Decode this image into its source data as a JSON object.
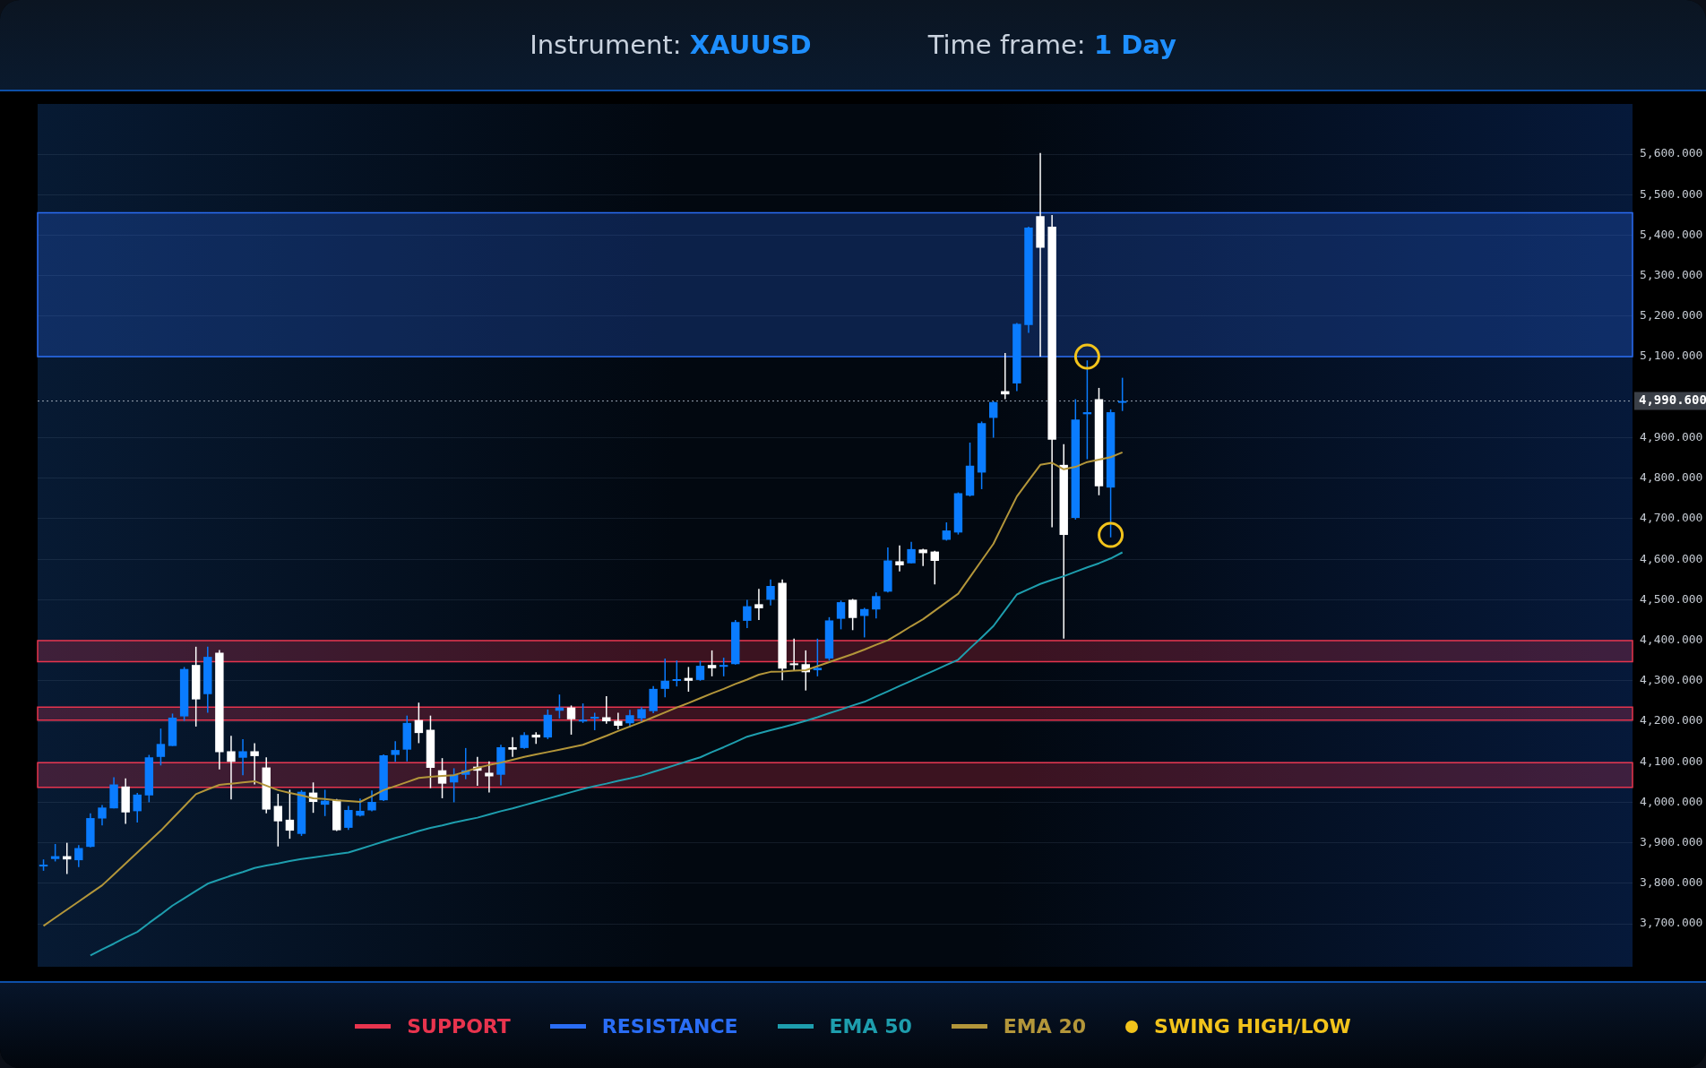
{
  "chart_data": {
    "type": "candlestick",
    "title": "Instrument: XAUUSD",
    "subtitle": "Time frame: 1 Day",
    "categories": [
      null,
      null,
      null,
      null,
      null,
      null,
      null,
      null,
      null,
      null,
      null,
      null,
      null,
      null,
      null,
      null,
      null,
      null,
      null,
      null,
      null,
      null,
      null,
      null,
      null,
      null,
      null,
      null,
      null,
      null,
      null,
      null,
      null,
      null,
      null,
      null,
      null,
      null,
      null,
      null,
      null,
      null,
      null,
      null,
      null,
      null,
      null,
      null,
      null,
      null,
      null,
      null,
      null,
      null,
      null,
      null,
      null,
      null,
      null,
      null,
      null,
      null,
      null,
      null,
      null,
      null,
      null,
      null,
      null,
      null,
      null,
      null,
      null,
      null,
      null,
      null,
      null,
      null,
      null,
      null,
      null,
      null,
      null,
      null,
      null,
      null,
      null,
      null,
      null,
      null,
      null,
      null,
      null,
      null,
      null,
      null,
      null,
      null,
      null,
      null,
      null,
      null,
      null,
      null,
      null,
      null,
      null,
      null,
      null,
      null,
      null,
      null,
      null,
      null,
      null,
      null,
      null,
      null,
      null,
      null,
      null,
      null,
      null,
      null,
      null,
      null,
      null,
      null,
      null,
      null,
      null,
      null,
      null,
      null,
      null,
      null
    ],
    "ohlc": [
      [
        3842,
        3859,
        3831,
        3846
      ],
      [
        3860,
        3897,
        3854,
        3867
      ],
      [
        3867,
        3900,
        3823,
        3859
      ],
      [
        3857,
        3894,
        3840,
        3887
      ],
      [
        3890,
        3973,
        3889,
        3961
      ],
      [
        3960,
        3993,
        3943,
        3987
      ],
      [
        3985,
        4062,
        3985,
        4044
      ],
      [
        4039,
        4059,
        3947,
        3975
      ],
      [
        3978,
        4023,
        3950,
        4019
      ],
      [
        4017,
        4117,
        4000,
        4111
      ],
      [
        4112,
        4182,
        4091,
        4144
      ],
      [
        4139,
        4219,
        4139,
        4209
      ],
      [
        4212,
        4334,
        4201,
        4329
      ],
      [
        4339,
        4384,
        4187,
        4254
      ],
      [
        4267,
        4384,
        4221,
        4359
      ],
      [
        4369,
        4376,
        4081,
        4124
      ],
      [
        4126,
        4164,
        4007,
        4100
      ],
      [
        4110,
        4156,
        4067,
        4126
      ],
      [
        4126,
        4146,
        4044,
        4114
      ],
      [
        4086,
        4111,
        3973,
        3982
      ],
      [
        3991,
        4021,
        3891,
        3953
      ],
      [
        3957,
        4031,
        3910,
        3930
      ],
      [
        3922,
        4030,
        3917,
        4026
      ],
      [
        4024,
        4049,
        3974,
        4001
      ],
      [
        3994,
        4031,
        3966,
        4004
      ],
      [
        4006,
        4008,
        3929,
        3931
      ],
      [
        3937,
        3991,
        3932,
        3981
      ],
      [
        3967,
        4009,
        3965,
        3979
      ],
      [
        3980,
        4029,
        3978,
        4001
      ],
      [
        4005,
        4118,
        4003,
        4116
      ],
      [
        4117,
        4151,
        4100,
        4129
      ],
      [
        4130,
        4214,
        4101,
        4196
      ],
      [
        4203,
        4246,
        4146,
        4171
      ],
      [
        4179,
        4214,
        4035,
        4085
      ],
      [
        4079,
        4109,
        4010,
        4046
      ],
      [
        4049,
        4084,
        4000,
        4068
      ],
      [
        4068,
        4134,
        4057,
        4079
      ],
      [
        4088,
        4112,
        4041,
        4078
      ],
      [
        4073,
        4101,
        4024,
        4064
      ],
      [
        4068,
        4142,
        4042,
        4136
      ],
      [
        4136,
        4161,
        4112,
        4130
      ],
      [
        4134,
        4173,
        4132,
        4166
      ],
      [
        4167,
        4173,
        4144,
        4160
      ],
      [
        4160,
        4229,
        4156,
        4216
      ],
      [
        4226,
        4266,
        4207,
        4234
      ],
      [
        4234,
        4239,
        4167,
        4205
      ],
      [
        4201,
        4244,
        4196,
        4204
      ],
      [
        4208,
        4221,
        4178,
        4211
      ],
      [
        4210,
        4262,
        4194,
        4200
      ],
      [
        4201,
        4221,
        4180,
        4189
      ],
      [
        4195,
        4228,
        4185,
        4215
      ],
      [
        4207,
        4235,
        4200,
        4230
      ],
      [
        4225,
        4287,
        4220,
        4280
      ],
      [
        4280,
        4355,
        4259,
        4300
      ],
      [
        4301,
        4350,
        4286,
        4304
      ],
      [
        4307,
        4334,
        4273,
        4300
      ],
      [
        4302,
        4349,
        4300,
        4337
      ],
      [
        4339,
        4375,
        4311,
        4331
      ],
      [
        4337,
        4357,
        4311,
        4339
      ],
      [
        4341,
        4450,
        4340,
        4445
      ],
      [
        4448,
        4500,
        4430,
        4484
      ],
      [
        4489,
        4527,
        4450,
        4479
      ],
      [
        4500,
        4550,
        4486,
        4534
      ],
      [
        4542,
        4550,
        4301,
        4330
      ],
      [
        4343,
        4404,
        4325,
        4339
      ],
      [
        4341,
        4375,
        4276,
        4321
      ],
      [
        4326,
        4404,
        4311,
        4332
      ],
      [
        4355,
        4457,
        4350,
        4449
      ],
      [
        4453,
        4498,
        4427,
        4494
      ],
      [
        4500,
        4502,
        4425,
        4455
      ],
      [
        4460,
        4480,
        4407,
        4477
      ],
      [
        4476,
        4518,
        4454,
        4509
      ],
      [
        4520,
        4629,
        4518,
        4597
      ],
      [
        4595,
        4634,
        4570,
        4585
      ],
      [
        4590,
        4643,
        4590,
        4625
      ],
      [
        4624,
        4626,
        4583,
        4615
      ],
      [
        4619,
        4621,
        4538,
        4596
      ],
      [
        4648,
        4691,
        4646,
        4671
      ],
      [
        4666,
        4765,
        4661,
        4763
      ],
      [
        4757,
        4888,
        4755,
        4831
      ],
      [
        4814,
        4940,
        4773,
        4936
      ],
      [
        4949,
        4990,
        4900,
        4988
      ],
      [
        5015,
        5109,
        4995,
        5007
      ],
      [
        5034,
        5183,
        5015,
        5181
      ],
      [
        5178,
        5421,
        5159,
        5419
      ],
      [
        5447,
        5603,
        5100,
        5369
      ],
      [
        5421,
        5450,
        4679,
        4895
      ],
      [
        4833,
        4884,
        4404,
        4660
      ],
      [
        4702,
        4995,
        4698,
        4945
      ],
      [
        4958,
        5091,
        4847,
        4963
      ],
      [
        4995,
        5023,
        4758,
        4780
      ],
      [
        4777,
        4970,
        4654,
        4963
      ],
      [
        4988,
        5048,
        4966,
        4990.6
      ],
      null,
      null,
      null,
      null,
      null,
      null,
      null,
      null,
      null,
      null,
      null,
      null,
      null,
      null,
      null,
      null,
      null,
      null,
      null,
      null,
      null,
      null,
      null,
      null,
      null,
      null,
      null,
      null,
      null,
      null,
      null,
      null,
      null,
      null,
      null,
      null,
      null,
      null,
      null,
      null,
      null,
      null,
      null
    ],
    "colors": [
      "#0a7cff",
      "#0a7cff",
      "#ffffff",
      "#0a7cff",
      "#0a7cff",
      "#0a7cff",
      "#0a7cff",
      "#ffffff",
      "#0a7cff",
      "#0a7cff",
      "#0a7cff",
      "#0a7cff",
      "#0a7cff",
      "#ffffff",
      "#0a7cff",
      "#ffffff",
      "#ffffff",
      "#0a7cff",
      "#ffffff",
      "#ffffff",
      "#ffffff",
      "#ffffff",
      "#0a7cff",
      "#ffffff",
      "#0a7cff",
      "#ffffff",
      "#0a7cff",
      "#0a7cff",
      "#0a7cff",
      "#0a7cff",
      "#0a7cff",
      "#0a7cff",
      "#ffffff",
      "#ffffff",
      "#ffffff",
      "#0a7cff",
      "#0a7cff",
      "#ffffff",
      "#ffffff",
      "#0a7cff",
      "#ffffff",
      "#0a7cff",
      "#ffffff",
      "#0a7cff",
      "#0a7cff",
      "#ffffff",
      "#0a7cff",
      "#0a7cff",
      "#ffffff",
      "#ffffff",
      "#0a7cff",
      "#0a7cff",
      "#0a7cff",
      "#0a7cff",
      "#0a7cff",
      "#ffffff",
      "#0a7cff",
      "#ffffff",
      "#0a7cff",
      "#0a7cff",
      "#0a7cff",
      "#ffffff",
      "#0a7cff",
      "#ffffff",
      "#ffffff",
      "#ffffff",
      "#0a7cff",
      "#0a7cff",
      "#0a7cff",
      "#ffffff",
      "#0a7cff",
      "#0a7cff",
      "#0a7cff",
      "#ffffff",
      "#0a7cff",
      "#ffffff",
      "#ffffff",
      "#0a7cff",
      "#0a7cff",
      "#0a7cff",
      "#0a7cff",
      "#0a7cff",
      "#ffffff",
      "#0a7cff",
      "#0a7cff",
      "#ffffff",
      "#ffffff",
      "#ffffff",
      "#0a7cff",
      "#0a7cff",
      "#ffffff",
      "#0a7cff",
      "#0a7cff",
      null,
      null,
      null,
      null,
      null,
      null,
      null,
      null,
      null,
      null,
      null,
      null,
      null,
      null,
      null,
      null,
      null,
      null,
      null,
      null,
      null,
      null,
      null,
      null,
      null,
      null,
      null,
      null,
      null,
      null,
      null,
      null,
      null,
      null,
      null,
      null,
      null,
      null,
      null,
      null,
      null,
      null,
      null
    ],
    "series": [
      {
        "type": "line",
        "name": "EMA 50",
        "color": "#1e9eae",
        "marker": "none",
        "values": [
          null,
          null,
          null,
          null,
          3622,
          3637,
          3651,
          3666,
          3680,
          3702,
          3723,
          3745,
          3763,
          3781,
          3799,
          3809,
          3819,
          3828,
          3838,
          3844,
          3849,
          3855,
          3860,
          3864,
          3868,
          3872,
          3876,
          3885,
          3894,
          3903,
          3912,
          3920,
          3929,
          3937,
          3943,
          3950,
          3956,
          3962,
          3970,
          3978,
          3985,
          3993,
          4001,
          4009,
          4017,
          4025,
          4033,
          4040,
          4046,
          4053,
          4059,
          4066,
          4075,
          4084,
          4093,
          4102,
          4111,
          4124,
          4136,
          4149,
          4162,
          4170,
          4178,
          4185,
          4193,
          4201,
          4210,
          4220,
          4229,
          4239,
          4248,
          4261,
          4274,
          4287,
          4300,
          4313,
          4326,
          4339,
          4352,
          4380,
          4407,
          4435,
          4474,
          4513,
          4526,
          4539,
          4549,
          4558,
          4569,
          4580,
          4590,
          4602,
          4617,
          null,
          null,
          null,
          null,
          null,
          null,
          null,
          null,
          null,
          null,
          null,
          null,
          null,
          null,
          null,
          null,
          null,
          null,
          null,
          null,
          null,
          null,
          null,
          null,
          null,
          null,
          null,
          null,
          null,
          null,
          null,
          null,
          null,
          null,
          null,
          null,
          null,
          null,
          null,
          null,
          null,
          null,
          null
        ]
      },
      {
        "type": "line",
        "name": "EMA 20",
        "color": "#b3963a",
        "marker": "none",
        "values": [
          3695,
          3715,
          3735,
          3755,
          3775,
          3795,
          3822,
          3849,
          3876,
          3903,
          3930,
          3960,
          3990,
          4020,
          4032,
          4043,
          4046,
          4049,
          4052,
          4041,
          4030,
          4023,
          4017,
          4010,
          4008,
          4005,
          4003,
          4001,
          4015,
          4030,
          4040,
          4050,
          4060,
          4063,
          4065,
          4067,
          4076,
          4085,
          4092,
          4098,
          4105,
          4112,
          4118,
          4124,
          4130,
          4136,
          4142,
          4153,
          4164,
          4176,
          4187,
          4198,
          4210,
          4222,
          4234,
          4245,
          4257,
          4269,
          4280,
          4292,
          4303,
          4315,
          4322,
          4323,
          4325,
          4326,
          4336,
          4346,
          4356,
          4366,
          4377,
          4389,
          4400,
          4417,
          4435,
          4452,
          4473,
          4494,
          4515,
          4556,
          4597,
          4638,
          4697,
          4755,
          4794,
          4833,
          4838,
          4822,
          4828,
          4840,
          4846,
          4852,
          4864,
          null,
          null,
          null,
          null,
          null,
          null,
          null,
          null,
          null,
          null,
          null,
          null,
          null,
          null,
          null,
          null,
          null,
          null,
          null,
          null,
          null,
          null,
          null,
          null,
          null,
          null,
          null,
          null,
          null,
          null,
          null,
          null,
          null,
          null,
          null,
          null,
          null,
          null,
          null,
          null,
          null,
          null,
          null
        ]
      },
      {
        "type": "scatter",
        "name": "SWING HIGH/LOW",
        "color": "#f2c31b",
        "marker": "circle",
        "values": [
          null,
          null,
          null,
          null,
          null,
          null,
          null,
          null,
          null,
          null,
          null,
          null,
          null,
          null,
          null,
          null,
          null,
          null,
          null,
          null,
          null,
          null,
          null,
          null,
          null,
          null,
          null,
          null,
          null,
          null,
          null,
          null,
          null,
          null,
          null,
          null,
          null,
          null,
          null,
          null,
          null,
          null,
          null,
          null,
          null,
          null,
          null,
          null,
          null,
          null,
          null,
          null,
          null,
          null,
          null,
          null,
          null,
          null,
          null,
          null,
          null,
          null,
          null,
          null,
          null,
          null,
          null,
          null,
          null,
          null,
          null,
          null,
          null,
          null,
          null,
          null,
          null,
          null,
          null,
          null,
          null,
          null,
          null,
          null,
          null,
          null,
          null,
          null,
          null,
          5100,
          null,
          4660,
          null,
          null,
          null,
          null,
          null,
          null,
          null,
          null,
          null,
          null,
          null,
          null,
          null,
          null,
          null,
          null,
          null,
          null,
          null,
          null,
          null,
          null,
          null,
          null,
          null,
          null,
          null,
          null,
          null,
          null,
          null,
          null,
          null,
          null,
          null,
          null,
          null,
          null,
          null,
          null,
          null,
          null,
          null,
          null
        ]
      }
    ],
    "bands": [
      {
        "axis": "y",
        "from": 4347,
        "to": 4399,
        "label": "SUPPORT",
        "color": "#e8344e"
      },
      {
        "axis": "y",
        "from": 5100,
        "to": 5455,
        "label": "RESISTANCE",
        "color": "#2a6df5"
      },
      {
        "axis": "y",
        "from": 4203,
        "to": 4235,
        "color": "#e8344e"
      },
      {
        "axis": "y",
        "from": 4037,
        "to": 4098,
        "color": "#e8344e"
      }
    ],
    "ref_lines": [
      {
        "axis": "y",
        "value": 4990.6,
        "label": "4,990.600",
        "line_style": "dotted",
        "color": "#9aa4b2"
      }
    ],
    "ylim": [
      3594,
      5724
    ],
    "yticks": [
      {
        "value": 3700,
        "label": "3,700.000"
      },
      {
        "value": 3800,
        "label": "3,800.000"
      },
      {
        "value": 3900,
        "label": "3,900.000"
      },
      {
        "value": 4000,
        "label": "4,000.000"
      },
      {
        "value": 4100,
        "label": "4,100.000"
      },
      {
        "value": 4200,
        "label": "4,200.000"
      },
      {
        "value": 4300,
        "label": "4,300.000"
      },
      {
        "value": 4400,
        "label": "4,400.000"
      },
      {
        "value": 4500,
        "label": "4,500.000"
      },
      {
        "value": 4600,
        "label": "4,600.000"
      },
      {
        "value": 4700,
        "label": "4,700.000"
      },
      {
        "value": 4800,
        "label": "4,800.000"
      },
      {
        "value": 4900,
        "label": "4,900.000"
      },
      {
        "value": 5100,
        "label": "5,100.000"
      },
      {
        "value": 5200,
        "label": "5,200.000"
      },
      {
        "value": 5300,
        "label": "5,300.000"
      },
      {
        "value": 5400,
        "label": "5,400.000"
      },
      {
        "value": 5500,
        "label": "5,500.000"
      },
      {
        "value": 5600,
        "label": "5,600.000"
      }
    ],
    "grid": "y",
    "legend": "bottom",
    "tick_labels": "y"
  }
}
